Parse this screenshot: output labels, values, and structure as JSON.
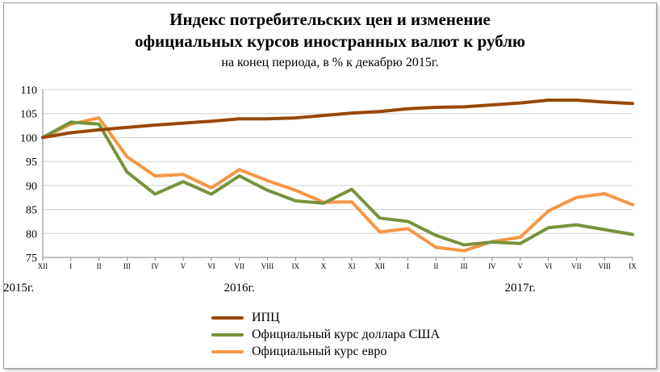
{
  "chart_data": {
    "type": "line",
    "title_line1": "Индекс потребительских цен и изменение",
    "title_line2": "официальных курсов иностранных валют к рублю",
    "subtitle": "на конец периода, в % к декабрю 2015г.",
    "categories": [
      "XII",
      "I",
      "II",
      "III",
      "IV",
      "V",
      "VI",
      "VII",
      "VIII",
      "IX",
      "X",
      "XI",
      "XII",
      "I",
      "II",
      "III",
      "IV",
      "V",
      "VI",
      "VII",
      "VIII",
      "IX"
    ],
    "year_labels": [
      {
        "label": "2015г.",
        "index": 0
      },
      {
        "label": "2016г.",
        "index": 7
      },
      {
        "label": "2017г.",
        "index": 17
      }
    ],
    "ylim": [
      75,
      110
    ],
    "yticks": [
      75,
      80,
      85,
      90,
      95,
      100,
      105,
      110
    ],
    "grid": true,
    "legend_position": "bottom",
    "series": [
      {
        "name": "ИПЦ",
        "color": "#984807",
        "values": [
          100,
          101,
          101.6,
          102.1,
          102.6,
          103,
          103.4,
          103.9,
          103.9,
          104.1,
          104.6,
          105.1,
          105.4,
          106,
          106.3,
          106.4,
          106.8,
          107.2,
          107.8,
          107.8,
          107.4,
          107.1
        ]
      },
      {
        "name": "Официальный курс доллара США",
        "color": "#77933C",
        "values": [
          100,
          103.2,
          102.8,
          92.8,
          88.2,
          90.8,
          88.2,
          92,
          89,
          86.8,
          86.3,
          89.2,
          83.2,
          82.5,
          79.6,
          77.6,
          78.2,
          77.9,
          81.2,
          81.8,
          80.8,
          79.8
        ]
      },
      {
        "name": "Официальный курс евро",
        "color": "#F79646",
        "values": [
          100,
          102.8,
          104.1,
          96,
          92,
          92.3,
          89.5,
          93.3,
          91,
          89,
          86.5,
          86.6,
          80.3,
          81,
          77.1,
          76.4,
          78.3,
          79.2,
          84.7,
          87.5,
          88.3,
          86
        ]
      }
    ]
  }
}
